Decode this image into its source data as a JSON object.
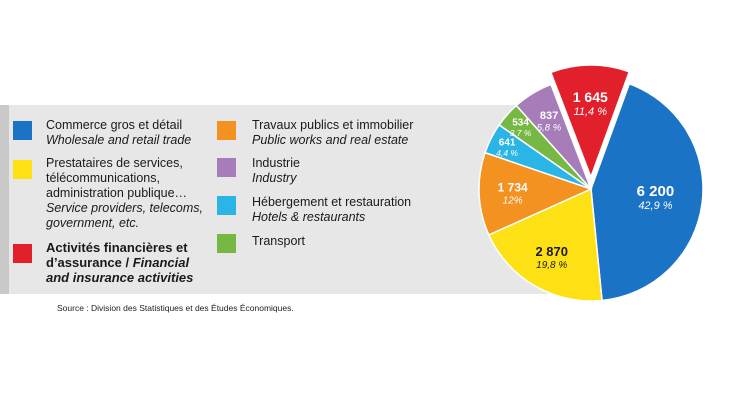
{
  "colors": {
    "commerce": "#1a73c4",
    "prestataires": "#fde114",
    "finance": "#e2202c",
    "travaux": "#f39220",
    "industrie": "#a67db8",
    "hebergement": "#2bb5e6",
    "transport": "#76b843"
  },
  "legend": [
    {
      "key": "commerce",
      "fr": "Commerce gros et détail",
      "en": "Wholesale and retail trade"
    },
    {
      "key": "prestataires",
      "fr1": "Prestataires de services,",
      "fr2": "télécommunications,",
      "fr3": "administration publique…",
      "en1": "Service providers, telecoms,",
      "en2": "government, etc."
    },
    {
      "key": "finance",
      "line1": "Activités financières et",
      "line2_fr": "d’assurance / ",
      "line2_en": "Financial",
      "line3_en": "and insurance activities"
    },
    {
      "key": "travaux",
      "fr": "Travaux publics et immobilier",
      "en": "Public works and real estate"
    },
    {
      "key": "industrie",
      "fr": "Industrie",
      "en": "Industry"
    },
    {
      "key": "hebergement",
      "fr": "Hébergement et restauration",
      "en": "Hotels & restaurants"
    },
    {
      "key": "transport",
      "fr": "Transport"
    }
  ],
  "source": "Source : Division des Statistiques et des Études Économiques.",
  "chart_data": {
    "type": "pie",
    "slices": [
      {
        "key": "commerce",
        "value": 6200,
        "label": "6 200",
        "pct_label": "42,9 %"
      },
      {
        "key": "prestataires",
        "value": 2870,
        "label": "2 870",
        "pct_label": "19,8 %"
      },
      {
        "key": "travaux",
        "value": 1734,
        "label": "1 734",
        "pct_label": "12%"
      },
      {
        "key": "hebergement",
        "value": 641,
        "label": "641",
        "pct_label": "4,4 %"
      },
      {
        "key": "transport",
        "value": 534,
        "label": "534",
        "pct_label": "3,7 %"
      },
      {
        "key": "industrie",
        "value": 837,
        "label": "837",
        "pct_label": "5,8 %"
      },
      {
        "key": "finance",
        "value": 1645,
        "label": "1 645",
        "pct_label": "11,4 %",
        "exploded": true
      }
    ]
  }
}
